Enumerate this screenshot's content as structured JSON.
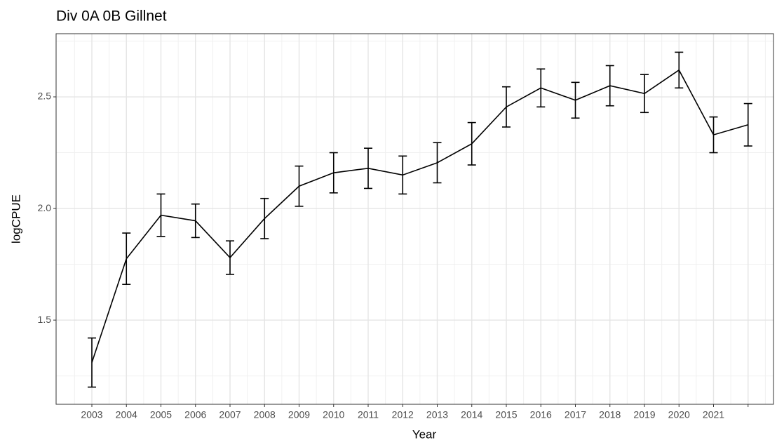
{
  "chart_data": {
    "type": "line",
    "title": "Div 0A 0B Gillnet",
    "x_label": "Year",
    "y_label": "logCPUE",
    "categories": [
      "2003",
      "2004",
      "2005",
      "2006",
      "2007",
      "2008",
      "2009",
      "2010",
      "2011",
      "2012",
      "2013",
      "2014",
      "2015",
      "2016",
      "2017",
      "2018",
      "2019",
      "2020",
      "2021",
      null
    ],
    "values": [
      1.31,
      1.775,
      1.97,
      1.945,
      1.78,
      1.955,
      2.1,
      2.16,
      2.18,
      2.15,
      2.205,
      2.29,
      2.455,
      2.54,
      2.485,
      2.55,
      2.515,
      2.62,
      2.33,
      2.375
    ],
    "errors": [
      0.11,
      0.115,
      0.095,
      0.075,
      0.075,
      0.09,
      0.09,
      0.09,
      0.09,
      0.085,
      0.09,
      0.095,
      0.09,
      0.085,
      0.08,
      0.09,
      0.085,
      0.08,
      0.08,
      0.095
    ],
    "color": "#000000",
    "ylim": [
      1.123,
      2.783
    ],
    "yticks": [
      1.5,
      {
        "value": 2,
        "label": "2.0"
      },
      2.5
    ],
    "grid": true
  }
}
